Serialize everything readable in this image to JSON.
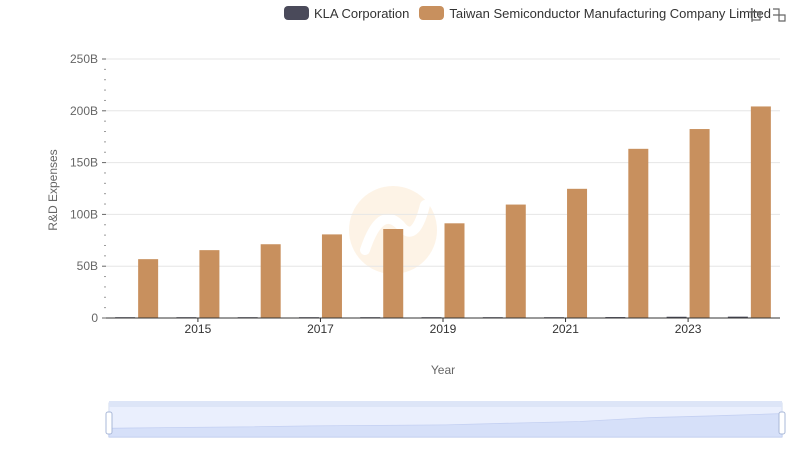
{
  "legend": {
    "items": [
      {
        "label": "KLA Corporation",
        "color": "#4a4a5a"
      },
      {
        "label": "Taiwan Semiconductor Manufacturing Company Limited",
        "color": "#c8905e"
      }
    ]
  },
  "toolbox": {
    "zoom_icon": "zoom-icon",
    "restore_icon": "restore-icon"
  },
  "chart_data": {
    "type": "bar",
    "xlabel": "Year",
    "ylabel": "R&D Expenses",
    "categories": [
      "2014",
      "2015",
      "2016",
      "2017",
      "2018",
      "2019",
      "2020",
      "2021",
      "2022",
      "2023",
      "2024"
    ],
    "x_tick_labels": [
      "2015",
      "2017",
      "2019",
      "2021",
      "2023"
    ],
    "y_tick_labels": [
      "0",
      "50B",
      "100B",
      "150B",
      "200B",
      "250B"
    ],
    "ylim": [
      0,
      250
    ],
    "grid": true,
    "legend_position": "top-right",
    "series": [
      {
        "name": "KLA Corporation",
        "color": "#4a4a5a",
        "values": [
          0.07,
          0.08,
          0.08,
          0.09,
          0.1,
          0.2,
          0.4,
          0.6,
          0.9,
          1.2,
          1.3
        ]
      },
      {
        "name": "Taiwan Semiconductor Manufacturing Company Limited",
        "color": "#c8905e",
        "values": [
          56.8,
          65.5,
          71.2,
          80.7,
          85.9,
          91.4,
          109.5,
          124.7,
          163.3,
          182.4,
          204.2
        ]
      }
    ]
  },
  "data_zoom": {
    "start": 0,
    "end": 100
  }
}
